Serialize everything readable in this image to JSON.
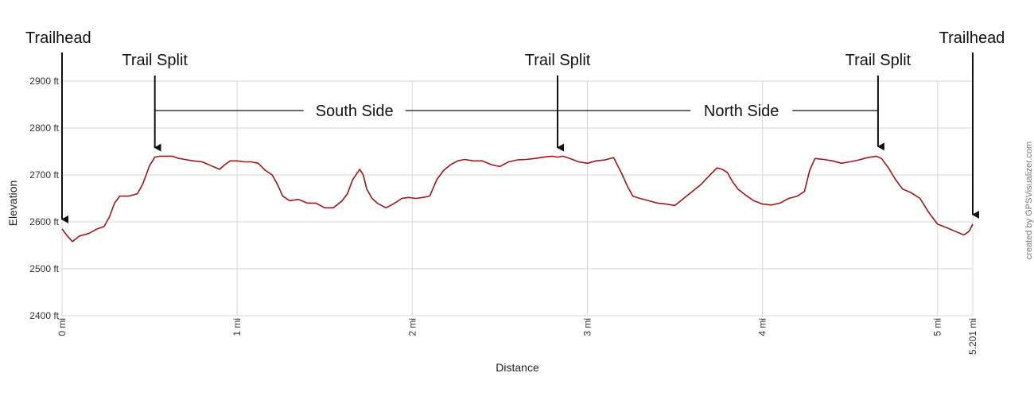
{
  "chart_data": {
    "type": "line",
    "title": "",
    "xlabel": "Distance",
    "ylabel": "Elevation",
    "xlim": [
      0,
      5.201
    ],
    "ylim": [
      2400,
      2900
    ],
    "grid": true,
    "y_ticks": [
      2400,
      2500,
      2600,
      2700,
      2800,
      2900
    ],
    "y_tick_labels": [
      "2400 ft",
      "2500 ft",
      "2600 ft",
      "2700 ft",
      "2800 ft",
      "2900 ft"
    ],
    "x_ticks": [
      0,
      1,
      2,
      3,
      4,
      5,
      5.201
    ],
    "x_tick_labels": [
      "0 mi",
      "1 mi",
      "2 mi",
      "3 mi",
      "4 mi",
      "5 mi",
      "5.201 mi"
    ],
    "line_color": "#a01515",
    "series": [
      {
        "x": [
          0,
          0.03,
          0.06,
          0.1,
          0.15,
          0.2,
          0.24,
          0.27,
          0.3,
          0.33,
          0.38,
          0.43,
          0.46,
          0.48,
          0.5,
          0.53,
          0.56,
          0.6,
          0.63,
          0.66,
          0.7,
          0.75,
          0.8,
          0.85,
          0.9,
          0.93,
          0.96,
          1.0,
          1.04,
          1.08,
          1.12,
          1.16,
          1.2,
          1.23,
          1.26,
          1.3,
          1.35,
          1.4,
          1.45,
          1.5,
          1.55,
          1.6,
          1.63,
          1.66,
          1.7,
          1.72,
          1.74,
          1.77,
          1.8,
          1.85,
          1.9,
          1.94,
          1.98,
          2.02,
          2.06,
          2.1,
          2.14,
          2.18,
          2.22,
          2.26,
          2.3,
          2.35,
          2.4,
          2.45,
          2.5,
          2.55,
          2.6,
          2.65,
          2.7,
          2.75,
          2.8,
          2.83,
          2.86,
          2.9,
          2.95,
          3.0,
          3.05,
          3.1,
          3.15,
          3.2,
          3.23,
          3.26,
          3.3,
          3.35,
          3.4,
          3.45,
          3.5,
          3.55,
          3.6,
          3.65,
          3.7,
          3.74,
          3.77,
          3.8,
          3.83,
          3.86,
          3.9,
          3.95,
          4.0,
          4.05,
          4.1,
          4.15,
          4.2,
          4.24,
          4.27,
          4.3,
          4.35,
          4.4,
          4.45,
          4.5,
          4.55,
          4.6,
          4.65,
          4.68,
          4.72,
          4.76,
          4.8,
          4.85,
          4.9,
          4.95,
          5.0,
          5.05,
          5.1,
          5.15,
          5.18,
          5.201
        ],
        "y": [
          2585,
          2570,
          2558,
          2570,
          2575,
          2585,
          2590,
          2610,
          2640,
          2655,
          2655,
          2660,
          2680,
          2700,
          2720,
          2738,
          2740,
          2740,
          2740,
          2736,
          2733,
          2730,
          2728,
          2720,
          2712,
          2722,
          2730,
          2730,
          2728,
          2728,
          2725,
          2710,
          2700,
          2680,
          2655,
          2645,
          2648,
          2640,
          2640,
          2630,
          2630,
          2645,
          2660,
          2690,
          2712,
          2700,
          2670,
          2650,
          2640,
          2630,
          2640,
          2650,
          2652,
          2650,
          2652,
          2655,
          2690,
          2710,
          2722,
          2730,
          2733,
          2730,
          2730,
          2722,
          2718,
          2728,
          2732,
          2733,
          2735,
          2738,
          2740,
          2738,
          2740,
          2735,
          2728,
          2725,
          2730,
          2732,
          2737,
          2700,
          2675,
          2655,
          2650,
          2645,
          2640,
          2638,
          2635,
          2650,
          2665,
          2680,
          2700,
          2715,
          2712,
          2705,
          2685,
          2670,
          2658,
          2645,
          2638,
          2636,
          2640,
          2650,
          2655,
          2665,
          2710,
          2735,
          2733,
          2730,
          2725,
          2728,
          2732,
          2737,
          2740,
          2735,
          2715,
          2690,
          2670,
          2662,
          2650,
          2620,
          2595,
          2588,
          2580,
          2572,
          2580,
          2595
        ]
      }
    ],
    "annotations": [
      {
        "text": "Trailhead",
        "x": 0
      },
      {
        "text": "Trail Split",
        "x": 0.53
      },
      {
        "text": "South Side",
        "x": 1.67
      },
      {
        "text": "Trail Split",
        "x": 2.83
      },
      {
        "text": "North Side",
        "x": 3.88
      },
      {
        "text": "Trail Split",
        "x": 4.66
      },
      {
        "text": "Trailhead",
        "x": 5.201
      }
    ],
    "credit": "created by GPSVisualizer.com"
  }
}
